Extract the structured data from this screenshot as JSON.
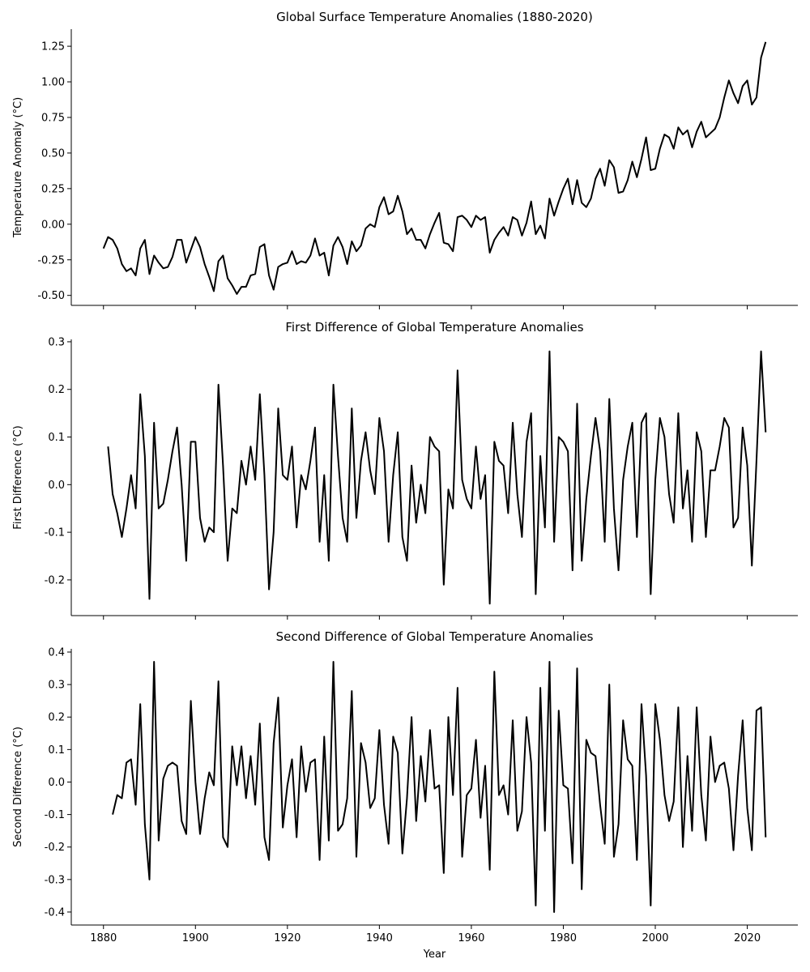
{
  "chart_data": [
    {
      "type": "line",
      "title": "Global Surface Temperature Anomalies (1880-2020)",
      "xlabel": "",
      "ylabel": "Temperature Anomaly (°C)",
      "x_start": 1880,
      "xlim": [
        1873,
        2031
      ],
      "ylim": [
        -0.57,
        1.37
      ],
      "y_ticks": [
        "-0.50",
        "-0.25",
        "0.00",
        "0.25",
        "0.50",
        "0.75",
        "1.00",
        "1.25"
      ],
      "x_ticks": [],
      "grid": false,
      "series": [
        {
          "color": "#000000",
          "values": [
            -0.17,
            -0.09,
            -0.11,
            -0.17,
            -0.28,
            -0.33,
            -0.31,
            -0.36,
            -0.17,
            -0.11,
            -0.35,
            -0.22,
            -0.27,
            -0.31,
            -0.3,
            -0.23,
            -0.11,
            -0.11,
            -0.27,
            -0.18,
            -0.09,
            -0.16,
            -0.28,
            -0.37,
            -0.47,
            -0.26,
            -0.22,
            -0.38,
            -0.43,
            -0.49,
            -0.44,
            -0.44,
            -0.36,
            -0.35,
            -0.16,
            -0.14,
            -0.36,
            -0.46,
            -0.3,
            -0.28,
            -0.27,
            -0.19,
            -0.28,
            -0.26,
            -0.27,
            -0.22,
            -0.1,
            -0.22,
            -0.2,
            -0.36,
            -0.15,
            -0.09,
            -0.16,
            -0.28,
            -0.12,
            -0.19,
            -0.15,
            -0.03,
            0.0,
            -0.02,
            0.12,
            0.19,
            0.07,
            0.09,
            0.2,
            0.09,
            -0.07,
            -0.03,
            -0.11,
            -0.11,
            -0.17,
            -0.07,
            0.01,
            0.08,
            -0.13,
            -0.14,
            -0.19,
            0.05,
            0.06,
            0.03,
            -0.02,
            0.06,
            0.03,
            0.05,
            -0.2,
            -0.11,
            -0.06,
            -0.02,
            -0.08,
            0.05,
            0.03,
            -0.08,
            0.01,
            0.16,
            -0.07,
            -0.01,
            -0.1,
            0.18,
            0.06,
            0.16,
            0.25,
            0.32,
            0.14,
            0.31,
            0.15,
            0.12,
            0.18,
            0.32,
            0.39,
            0.27,
            0.45,
            0.4,
            0.22,
            0.23,
            0.31,
            0.44,
            0.33,
            0.46,
            0.61,
            0.38,
            0.39,
            0.53,
            0.63,
            0.61,
            0.53,
            0.68,
            0.63,
            0.66,
            0.54,
            0.65,
            0.72,
            0.61,
            0.64,
            0.67,
            0.75,
            0.89,
            1.01,
            0.92,
            0.85,
            0.97,
            1.01,
            0.84,
            0.89,
            1.17,
            1.28
          ]
        }
      ]
    },
    {
      "type": "line",
      "title": "First Difference of Global Temperature Anomalies",
      "xlabel": "",
      "ylabel": "First Difference (°C)",
      "x_start": 1881,
      "xlim": [
        1873,
        2031
      ],
      "ylim": [
        -0.275,
        0.305
      ],
      "y_ticks": [
        "-0.2",
        "-0.1",
        "0.0",
        "0.1",
        "0.2",
        "0.3"
      ],
      "x_ticks": [],
      "grid": false,
      "series": [
        {
          "color": "#000000",
          "values": [
            0.08,
            -0.02,
            -0.06,
            -0.11,
            -0.05,
            0.02,
            -0.05,
            0.19,
            0.06,
            -0.24,
            0.13,
            -0.05,
            -0.04,
            0.01,
            0.07,
            0.12,
            0.0,
            -0.16,
            0.09,
            0.09,
            -0.07,
            -0.12,
            -0.09,
            -0.1,
            0.21,
            0.04,
            -0.16,
            -0.05,
            -0.06,
            0.05,
            0.0,
            0.08,
            0.01,
            0.19,
            0.02,
            -0.22,
            -0.1,
            0.16,
            0.02,
            0.01,
            0.08,
            -0.09,
            0.02,
            -0.01,
            0.05,
            0.12,
            -0.12,
            0.02,
            -0.16,
            0.21,
            0.06,
            -0.07,
            -0.12,
            0.16,
            -0.07,
            0.05,
            0.11,
            0.03,
            -0.02,
            0.14,
            0.07,
            -0.12,
            0.02,
            0.11,
            -0.11,
            -0.16,
            0.04,
            -0.08,
            0.0,
            -0.06,
            0.1,
            0.08,
            0.07,
            -0.21,
            -0.01,
            -0.05,
            0.24,
            0.01,
            -0.03,
            -0.05,
            0.08,
            -0.03,
            0.02,
            -0.25,
            0.09,
            0.05,
            0.04,
            -0.06,
            0.13,
            -0.02,
            -0.11,
            0.09,
            0.15,
            -0.23,
            0.06,
            -0.09,
            0.28,
            -0.12,
            0.1,
            0.09,
            0.07,
            -0.18,
            0.17,
            -0.16,
            -0.03,
            0.06,
            0.14,
            0.07,
            -0.12,
            0.18,
            -0.05,
            -0.18,
            0.01,
            0.08,
            0.13,
            -0.11,
            0.13,
            0.15,
            -0.23,
            0.01,
            0.14,
            0.1,
            -0.02,
            -0.08,
            0.15,
            -0.05,
            0.03,
            -0.12,
            0.11,
            0.07,
            -0.11,
            0.03,
            0.03,
            0.08,
            0.14,
            0.12,
            -0.09,
            -0.07,
            0.12,
            0.04,
            -0.17,
            0.05,
            0.28,
            0.11
          ]
        }
      ]
    },
    {
      "type": "line",
      "title": "Second Difference of Global Temperature Anomalies",
      "xlabel": "Year",
      "ylabel": "Second Difference (°C)",
      "x_start": 1882,
      "xlim": [
        1873,
        2031
      ],
      "ylim": [
        -0.44,
        0.41
      ],
      "y_ticks": [
        "-0.4",
        "-0.3",
        "-0.2",
        "-0.1",
        "0.0",
        "0.1",
        "0.2",
        "0.3",
        "0.4"
      ],
      "x_ticks": [
        "1880",
        "1900",
        "1920",
        "1940",
        "1960",
        "1980",
        "2000",
        "2020"
      ],
      "grid": false,
      "series": [
        {
          "color": "#000000",
          "values": [
            -0.1,
            -0.04,
            -0.05,
            0.06,
            0.07,
            -0.07,
            0.24,
            -0.13,
            -0.3,
            0.37,
            -0.18,
            0.01,
            0.05,
            0.06,
            0.05,
            -0.12,
            -0.16,
            0.25,
            0.0,
            -0.16,
            -0.05,
            0.03,
            -0.01,
            0.31,
            -0.17,
            -0.2,
            0.11,
            -0.01,
            0.11,
            -0.05,
            0.08,
            -0.07,
            0.18,
            -0.17,
            -0.24,
            0.12,
            0.26,
            -0.14,
            -0.01,
            0.07,
            -0.17,
            0.11,
            -0.03,
            0.06,
            0.07,
            -0.24,
            0.14,
            -0.18,
            0.37,
            -0.15,
            -0.13,
            -0.05,
            0.28,
            -0.23,
            0.12,
            0.06,
            -0.08,
            -0.05,
            0.16,
            -0.07,
            -0.19,
            0.14,
            0.09,
            -0.22,
            -0.05,
            0.2,
            -0.12,
            0.08,
            -0.06,
            0.16,
            -0.02,
            -0.01,
            -0.28,
            0.2,
            -0.04,
            0.29,
            -0.23,
            -0.04,
            -0.02,
            0.13,
            -0.11,
            0.05,
            -0.27,
            0.34,
            -0.04,
            -0.01,
            -0.1,
            0.19,
            -0.15,
            -0.09,
            0.2,
            0.06,
            -0.38,
            0.29,
            -0.15,
            0.37,
            -0.4,
            0.22,
            -0.01,
            -0.02,
            -0.25,
            0.35,
            -0.33,
            0.13,
            0.09,
            0.08,
            -0.07,
            -0.19,
            0.3,
            -0.23,
            -0.13,
            0.19,
            0.07,
            0.05,
            -0.24,
            0.24,
            0.02,
            -0.38,
            0.24,
            0.13,
            -0.04,
            -0.12,
            -0.06,
            0.23,
            -0.2,
            0.08,
            -0.15,
            0.23,
            -0.04,
            -0.18,
            0.14,
            0.0,
            0.05,
            0.06,
            -0.02,
            -0.21,
            0.02,
            0.19,
            -0.08,
            -0.21,
            0.22,
            0.23,
            -0.17
          ]
        }
      ]
    }
  ]
}
